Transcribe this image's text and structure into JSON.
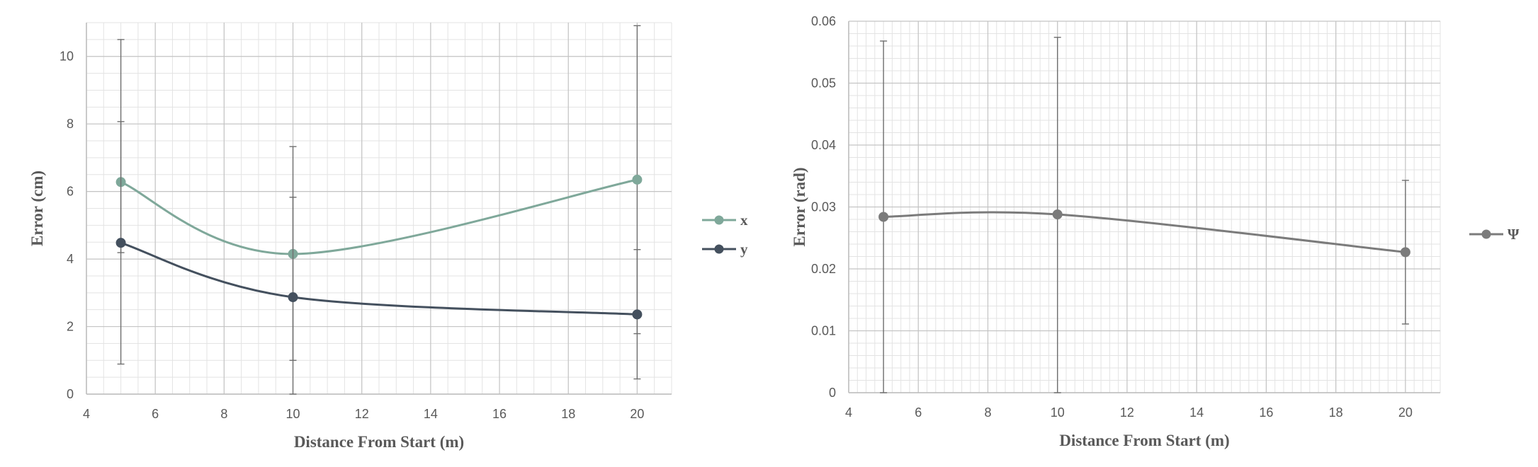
{
  "chart_data": [
    {
      "type": "line",
      "xlabel": "Distance From Start (m)",
      "ylabel": "Error (cm)",
      "xlim": [
        4,
        21
      ],
      "ylim": [
        0,
        11
      ],
      "xticks": [
        4,
        6,
        8,
        10,
        12,
        14,
        16,
        18,
        20
      ],
      "yticks": [
        0,
        2,
        4,
        6,
        8,
        10
      ],
      "grid": true,
      "legend": "right",
      "series": [
        {
          "name": "x",
          "color": "#7fa89a",
          "points": [
            {
              "x": 5,
              "y": 6.28,
              "err_low": 4.19,
              "err_high": 8.07
            },
            {
              "x": 10,
              "y": 4.15,
              "err_low": 1.0,
              "err_high": 7.33
            },
            {
              "x": 20,
              "y": 6.35,
              "err_low": 1.79,
              "err_high": 10.91
            }
          ]
        },
        {
          "name": "y",
          "color": "#44505e",
          "points": [
            {
              "x": 5,
              "y": 4.48,
              "err_low": 0.89,
              "err_high": 10.5
            },
            {
              "x": 10,
              "y": 2.87,
              "err_low": 0.0,
              "err_high": 5.83
            },
            {
              "x": 20,
              "y": 2.36,
              "err_low": 0.45,
              "err_high": 4.28
            }
          ]
        }
      ]
    },
    {
      "type": "line",
      "xlabel": "Distance From Start (m)",
      "ylabel": "Error (rad)",
      "xlim": [
        4,
        21
      ],
      "ylim": [
        0,
        0.06
      ],
      "xticks": [
        4,
        6,
        8,
        10,
        12,
        14,
        16,
        18,
        20
      ],
      "yticks": [
        0,
        0.01,
        0.02,
        0.03,
        0.04,
        0.05,
        0.06
      ],
      "grid": true,
      "legend": "right",
      "series": [
        {
          "name": "Ψ",
          "color": "#7b7b7b",
          "points": [
            {
              "x": 5,
              "y": 0.0284,
              "err_low": 0.0,
              "err_high": 0.0568
            },
            {
              "x": 10,
              "y": 0.0288,
              "err_low": 0.0,
              "err_high": 0.0574
            },
            {
              "x": 20,
              "y": 0.0227,
              "err_low": 0.0111,
              "err_high": 0.0343
            }
          ]
        }
      ]
    }
  ]
}
